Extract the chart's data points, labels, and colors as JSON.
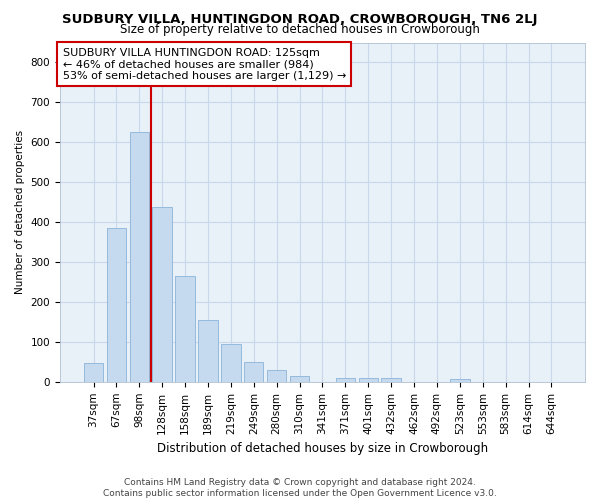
{
  "title1": "SUDBURY VILLA, HUNTINGDON ROAD, CROWBOROUGH, TN6 2LJ",
  "title2": "Size of property relative to detached houses in Crowborough",
  "xlabel": "Distribution of detached houses by size in Crowborough",
  "ylabel": "Number of detached properties",
  "categories": [
    "37sqm",
    "67sqm",
    "98sqm",
    "128sqm",
    "158sqm",
    "189sqm",
    "219sqm",
    "249sqm",
    "280sqm",
    "310sqm",
    "341sqm",
    "371sqm",
    "401sqm",
    "432sqm",
    "462sqm",
    "492sqm",
    "523sqm",
    "553sqm",
    "583sqm",
    "614sqm",
    "644sqm"
  ],
  "values": [
    48,
    385,
    625,
    438,
    265,
    155,
    95,
    50,
    30,
    15,
    0,
    10,
    10,
    10,
    0,
    0,
    8,
    0,
    0,
    0,
    0
  ],
  "bar_color": "#c5d9ef",
  "bar_edge_color": "#8ab4d8",
  "grid_color": "#c8d8ea",
  "background_color": "#e8f0f8",
  "vline_color": "#cc0000",
  "vline_x_index": 3,
  "annotation_text": "SUDBURY VILLA HUNTINGDON ROAD: 125sqm\n← 46% of detached houses are smaller (984)\n53% of semi-detached houses are larger (1,129) →",
  "annotation_box_facecolor": "#ffffff",
  "annotation_box_edgecolor": "#cc0000",
  "footnote": "Contains HM Land Registry data © Crown copyright and database right 2024.\nContains public sector information licensed under the Open Government Licence v3.0.",
  "ylim": [
    0,
    850
  ],
  "yticks": [
    0,
    100,
    200,
    300,
    400,
    500,
    600,
    700,
    800
  ],
  "title1_fontsize": 9.5,
  "title2_fontsize": 8.5,
  "xlabel_fontsize": 8.5,
  "ylabel_fontsize": 7.5,
  "tick_fontsize": 7.5,
  "annot_fontsize": 8,
  "footnote_fontsize": 6.5
}
